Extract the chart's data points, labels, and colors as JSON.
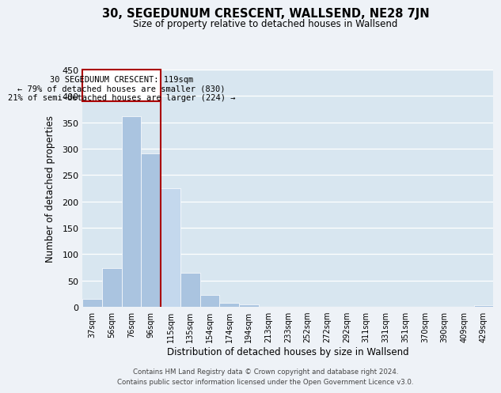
{
  "title": "30, SEGEDUNUM CRESCENT, WALLSEND, NE28 7JN",
  "subtitle": "Size of property relative to detached houses in Wallsend",
  "xlabel": "Distribution of detached houses by size in Wallsend",
  "ylabel": "Number of detached properties",
  "bin_labels": [
    "37sqm",
    "56sqm",
    "76sqm",
    "96sqm",
    "115sqm",
    "135sqm",
    "154sqm",
    "174sqm",
    "194sqm",
    "213sqm",
    "233sqm",
    "252sqm",
    "272sqm",
    "292sqm",
    "311sqm",
    "331sqm",
    "351sqm",
    "370sqm",
    "390sqm",
    "409sqm",
    "429sqm"
  ],
  "bar_values": [
    15,
    73,
    362,
    291,
    225,
    65,
    22,
    8,
    4,
    0,
    0,
    0,
    0,
    0,
    0,
    0,
    0,
    0,
    0,
    0,
    3
  ],
  "bar_color_normal": "#aac4e0",
  "bar_color_highlight": "#c4d8ed",
  "highlight_bar_index": 4,
  "vline_color": "#aa0000",
  "annotation_title": "30 SEGEDUNUM CRESCENT: 119sqm",
  "annotation_line1": "← 79% of detached houses are smaller (830)",
  "annotation_line2": "21% of semi-detached houses are larger (224) →",
  "annotation_box_color": "#ffffff",
  "annotation_border_color": "#aa0000",
  "ylim": [
    0,
    450
  ],
  "yticks": [
    0,
    50,
    100,
    150,
    200,
    250,
    300,
    350,
    400,
    450
  ],
  "footer_line1": "Contains HM Land Registry data © Crown copyright and database right 2024.",
  "footer_line2": "Contains public sector information licensed under the Open Government Licence v3.0.",
  "bg_color": "#eef2f7",
  "plot_bg_color": "#d8e6f0"
}
